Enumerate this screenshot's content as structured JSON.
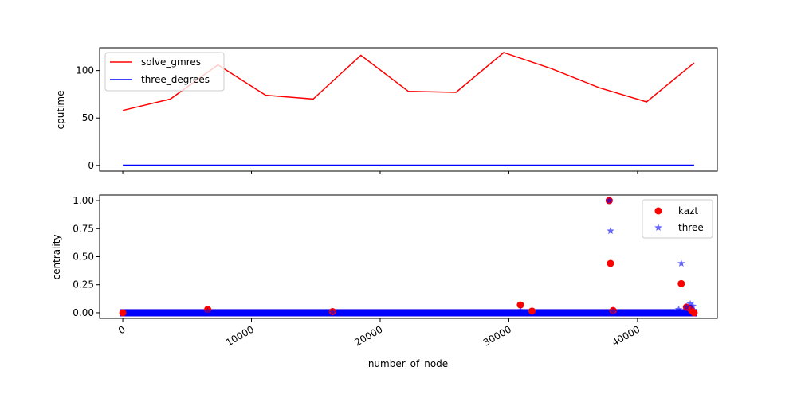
{
  "chart_data": [
    {
      "type": "line",
      "title": "",
      "xlabel": "",
      "ylabel": "cputime",
      "xlim": [
        -1800,
        46200
      ],
      "ylim": [
        -6,
        124
      ],
      "yticks": [
        0,
        50,
        100
      ],
      "x": [
        0,
        3700,
        7400,
        11100,
        14800,
        18500,
        22200,
        25900,
        29600,
        33300,
        37000,
        40700,
        44400
      ],
      "series": [
        {
          "name": "solve_gmres",
          "color": "#ff0000",
          "values": [
            58,
            70,
            106,
            74,
            70,
            116,
            78,
            77,
            119,
            102,
            82,
            67,
            108
          ]
        },
        {
          "name": "three_degrees",
          "color": "#0000ff",
          "values": [
            0.3,
            0.3,
            0.3,
            0.3,
            0.3,
            0.3,
            0.3,
            0.3,
            0.3,
            0.3,
            0.3,
            0.3,
            0.3
          ]
        }
      ],
      "legend": "top-left",
      "grid": false
    },
    {
      "type": "scatter",
      "title": "",
      "xlabel": "number_of_node",
      "ylabel": "centrality",
      "xlim": [
        -1800,
        46200
      ],
      "ylim": [
        -0.05,
        1.05
      ],
      "yticks": [
        0.0,
        0.25,
        0.5,
        0.75,
        1.0
      ],
      "ytick_labels": [
        "0.00",
        "0.25",
        "0.50",
        "0.75",
        "1.00"
      ],
      "xticks": [
        0,
        10000,
        20000,
        30000,
        40000
      ],
      "xtick_labels": [
        "0",
        "10000",
        "20000",
        "30000",
        "40000"
      ],
      "baseline_range": [
        0,
        44400
      ],
      "series": [
        {
          "name": "kazt",
          "color": "#ff0000",
          "marker": "circle",
          "points": [
            [
              6600,
              0.03
            ],
            [
              16300,
              0.01
            ],
            [
              30900,
              0.07
            ],
            [
              31800,
              0.015
            ],
            [
              37800,
              1.0
            ],
            [
              37900,
              0.44
            ],
            [
              38100,
              0.02
            ],
            [
              43400,
              0.26
            ],
            [
              43800,
              0.05
            ],
            [
              44100,
              0.04
            ],
            [
              44200,
              0.02
            ]
          ]
        },
        {
          "name": "three",
          "color": "#0000ff",
          "marker": "star",
          "points": [
            [
              6600,
              0.01
            ],
            [
              16300,
              0.005
            ],
            [
              30900,
              0.02
            ],
            [
              37800,
              1.0
            ],
            [
              37900,
              0.73
            ],
            [
              38100,
              0.01
            ],
            [
              43200,
              0.03
            ],
            [
              43400,
              0.44
            ],
            [
              43800,
              0.05
            ],
            [
              44100,
              0.08
            ],
            [
              44300,
              0.06
            ]
          ]
        }
      ],
      "legend": "top-right",
      "grid": false
    }
  ]
}
